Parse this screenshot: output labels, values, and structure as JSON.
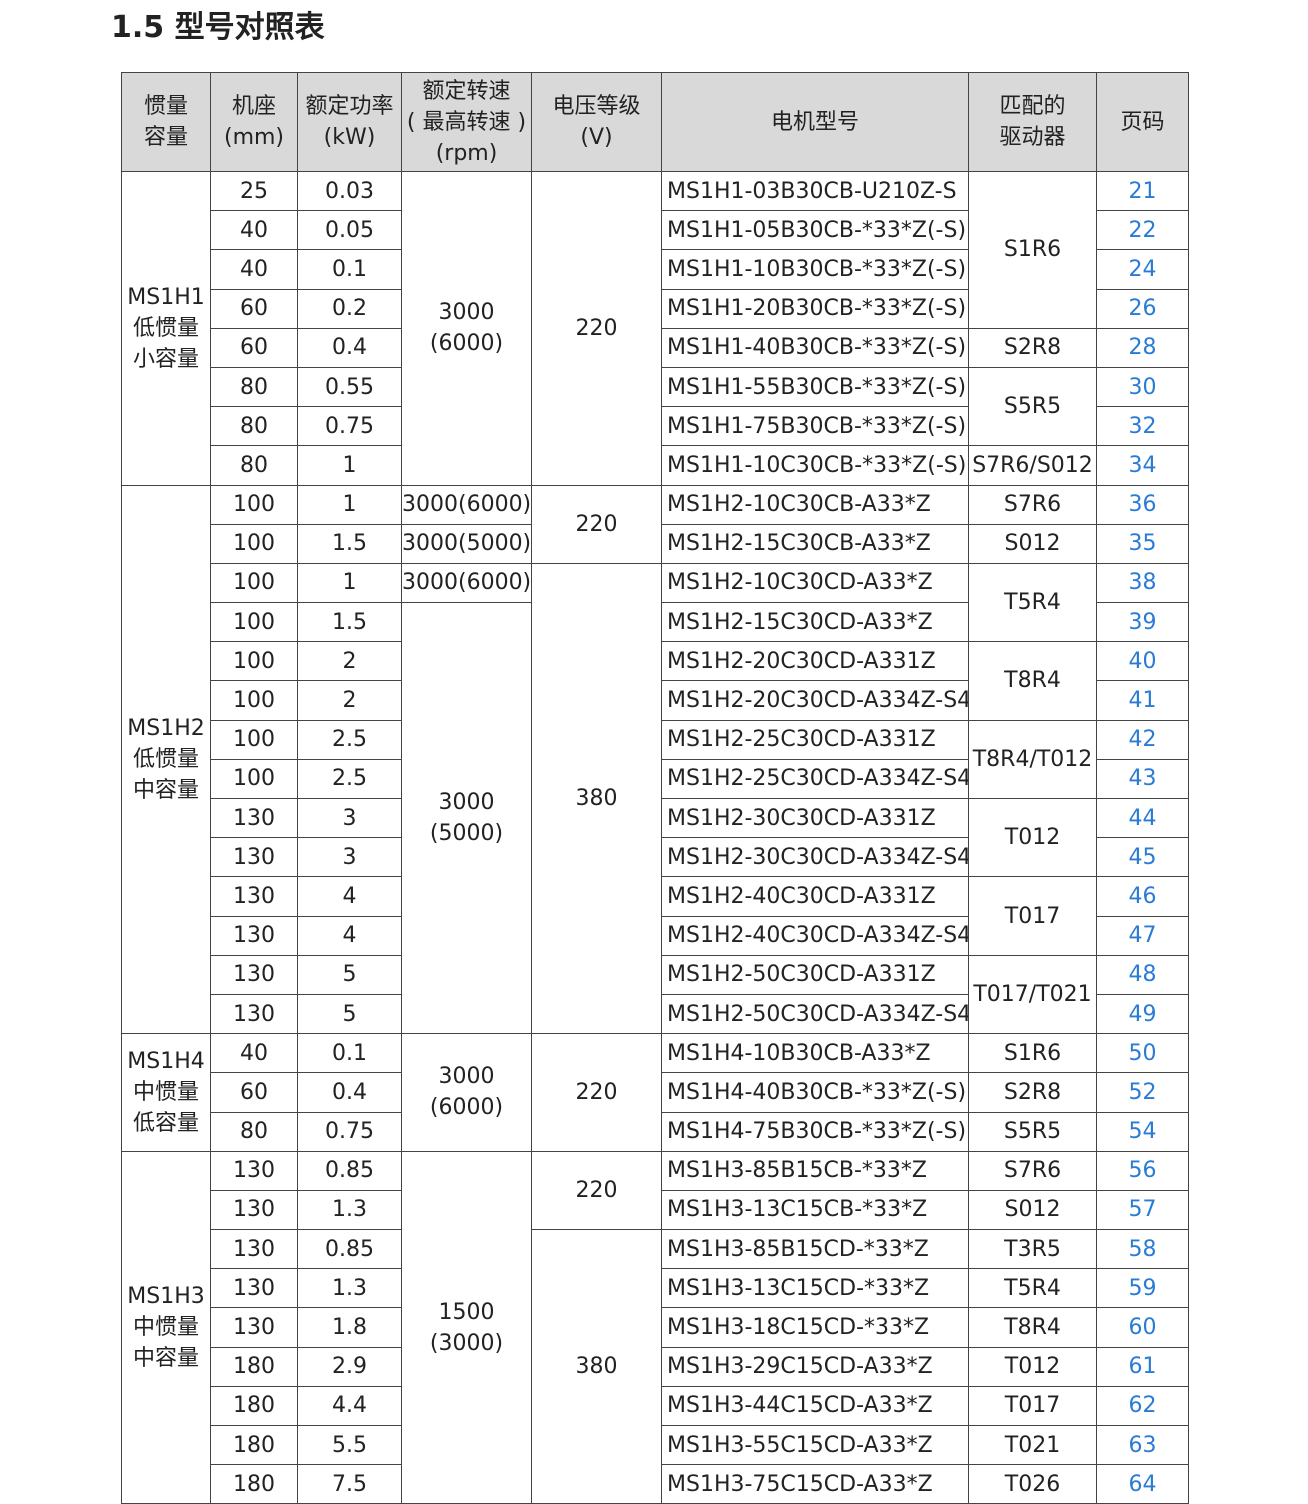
{
  "header": {
    "title": "1.5 型号对照表"
  },
  "table": {
    "columns": [
      [
        "惯量",
        "容量"
      ],
      [
        "机座",
        "(mm)"
      ],
      [
        "额定功率",
        "(kW)"
      ],
      [
        "额定转速",
        "( 最高转速 )",
        "(rpm)"
      ],
      [
        "电压等级",
        "(V)"
      ],
      [
        "电机型号"
      ],
      [
        "匹配的",
        "驱动器"
      ],
      [
        "页码"
      ]
    ],
    "rows": [
      [
        [
          "MS1H1",
          "低惯量",
          "小容量"
        ],
        "25",
        "0.03",
        [
          "3000",
          "(6000)"
        ],
        "220",
        "MS1H1-03B30CB-U210Z-S",
        "S1R6",
        "21"
      ],
      [
        null,
        "40",
        "0.05",
        null,
        null,
        "MS1H1-05B30CB-*33*Z(-S)",
        null,
        "22"
      ],
      [
        null,
        "40",
        "0.1",
        null,
        null,
        "MS1H1-10B30CB-*33*Z(-S)",
        null,
        "24"
      ],
      [
        null,
        "60",
        "0.2",
        null,
        null,
        "MS1H1-20B30CB-*33*Z(-S)",
        null,
        "26"
      ],
      [
        null,
        "60",
        "0.4",
        null,
        null,
        "MS1H1-40B30CB-*33*Z(-S)",
        "S2R8",
        "28"
      ],
      [
        null,
        "80",
        "0.55",
        null,
        null,
        "MS1H1-55B30CB-*33*Z(-S)",
        "S5R5",
        "30"
      ],
      [
        null,
        "80",
        "0.75",
        null,
        null,
        "MS1H1-75B30CB-*33*Z(-S)",
        null,
        "32"
      ],
      [
        null,
        "80",
        "1",
        null,
        null,
        "MS1H1-10C30CB-*33*Z(-S)",
        "S7R6/S012",
        "34"
      ],
      [
        [
          "MS1H2",
          "低惯量",
          "中容量"
        ],
        "100",
        "1",
        "3000(6000)",
        "220",
        "MS1H2-10C30CB-A33*Z",
        "S7R6",
        "36"
      ],
      [
        null,
        "100",
        "1.5",
        "3000(5000)",
        null,
        "MS1H2-15C30CB-A33*Z",
        "S012",
        "35"
      ],
      [
        null,
        "100",
        "1",
        "3000(6000)",
        "380",
        "MS1H2-10C30CD-A33*Z",
        "T5R4",
        "38"
      ],
      [
        null,
        "100",
        "1.5",
        [
          "3000",
          "(5000)"
        ],
        null,
        "MS1H2-15C30CD-A33*Z",
        null,
        "39"
      ],
      [
        null,
        "100",
        "2",
        null,
        null,
        "MS1H2-20C30CD-A331Z",
        "T8R4",
        "40"
      ],
      [
        null,
        "100",
        "2",
        null,
        null,
        "MS1H2-20C30CD-A334Z-S4",
        null,
        "41"
      ],
      [
        null,
        "100",
        "2.5",
        null,
        null,
        "MS1H2-25C30CD-A331Z",
        "T8R4/T012",
        "42"
      ],
      [
        null,
        "100",
        "2.5",
        null,
        null,
        "MS1H2-25C30CD-A334Z-S4",
        null,
        "43"
      ],
      [
        null,
        "130",
        "3",
        null,
        null,
        "MS1H2-30C30CD-A331Z",
        "T012",
        "44"
      ],
      [
        null,
        "130",
        "3",
        null,
        null,
        "MS1H2-30C30CD-A334Z-S4",
        null,
        "45"
      ],
      [
        null,
        "130",
        "4",
        null,
        null,
        "MS1H2-40C30CD-A331Z",
        "T017",
        "46"
      ],
      [
        null,
        "130",
        "4",
        null,
        null,
        "MS1H2-40C30CD-A334Z-S4",
        null,
        "47"
      ],
      [
        null,
        "130",
        "5",
        null,
        null,
        "MS1H2-50C30CD-A331Z",
        "T017/T021",
        "48"
      ],
      [
        null,
        "130",
        "5",
        null,
        null,
        "MS1H2-50C30CD-A334Z-S4",
        null,
        "49"
      ],
      [
        [
          "MS1H4",
          "中惯量",
          "低容量"
        ],
        "40",
        "0.1",
        [
          "3000",
          "(6000)"
        ],
        "220",
        "MS1H4-10B30CB-A33*Z",
        "S1R6",
        "50"
      ],
      [
        null,
        "60",
        "0.4",
        null,
        null,
        "MS1H4-40B30CB-*33*Z(-S)",
        "S2R8",
        "52"
      ],
      [
        null,
        "80",
        "0.75",
        null,
        null,
        "MS1H4-75B30CB-*33*Z(-S)",
        "S5R5",
        "54"
      ],
      [
        [
          "MS1H3",
          "中惯量",
          "中容量"
        ],
        "130",
        "0.85",
        [
          "1500",
          "(3000)"
        ],
        "220",
        "MS1H3-85B15CB-*33*Z",
        "S7R6",
        "56"
      ],
      [
        null,
        "130",
        "1.3",
        null,
        null,
        "MS1H3-13C15CB-*33*Z",
        "S012",
        "57"
      ],
      [
        null,
        "130",
        "0.85",
        null,
        "380",
        "MS1H3-85B15CD-*33*Z",
        "T3R5",
        "58"
      ],
      [
        null,
        "130",
        "1.3",
        null,
        null,
        "MS1H3-13C15CD-*33*Z",
        "T5R4",
        "59"
      ],
      [
        null,
        "130",
        "1.8",
        null,
        null,
        "MS1H3-18C15CD-*33*Z",
        "T8R4",
        "60"
      ],
      [
        null,
        "180",
        "2.9",
        null,
        null,
        "MS1H3-29C15CD-A33*Z",
        "T012",
        "61"
      ],
      [
        null,
        "180",
        "4.4",
        null,
        null,
        "MS1H3-44C15CD-A33*Z",
        "T017",
        "62"
      ],
      [
        null,
        "180",
        "5.5",
        null,
        null,
        "MS1H3-55C15CD-A33*Z",
        "T021",
        "63"
      ],
      [
        null,
        "180",
        "7.5",
        null,
        null,
        "MS1H3-75C15CD-A33*Z",
        "T026",
        "64"
      ]
    ]
  }
}
